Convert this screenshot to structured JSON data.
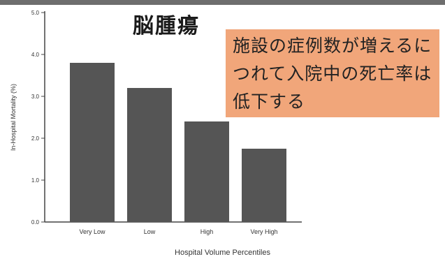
{
  "title": "脳腫瘍",
  "callout": {
    "text": "施設の症例数が増えるにつれて入院中の死亡率は低下する"
  },
  "colors": {
    "bar": "#555555",
    "callout_bg": "#f1a67a",
    "axis": "#444444"
  },
  "chart_data": {
    "type": "bar",
    "categories": [
      "Very Low",
      "Low",
      "High",
      "Very High"
    ],
    "values": [
      3.8,
      3.2,
      2.4,
      1.75
    ],
    "ylabel": "In-Hospital Mortality (%)",
    "xlabel": "Hospital Volume Percentiles",
    "ylim": [
      0,
      5
    ],
    "yticks": [
      "0.0",
      "1.0",
      "2.0",
      "3.0",
      "4.0",
      "5.0"
    ],
    "grid": false
  }
}
